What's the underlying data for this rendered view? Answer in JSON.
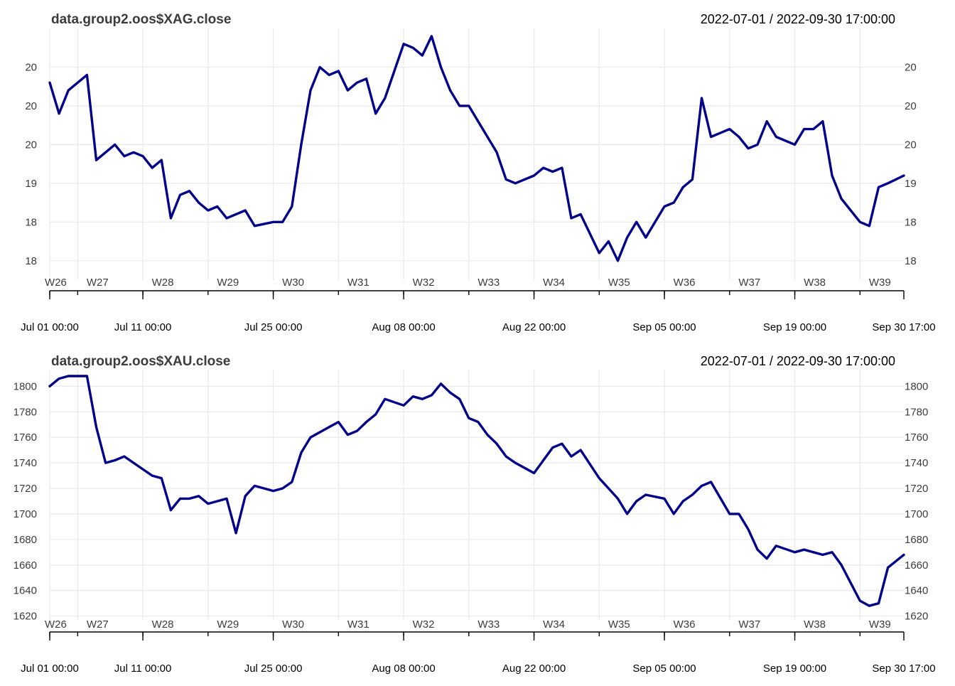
{
  "chart_data": [
    {
      "type": "line",
      "title": "data.group2.oos$XAG.close",
      "date_range": "2022-07-01 / 2022-09-30 17:00:00",
      "x_start": "2022-07-01 00:00",
      "x_end": "2022-09-30 17:00",
      "ylim": [
        17.75,
        21.0
      ],
      "y_ticks": [
        18.0,
        18.5,
        19.0,
        19.5,
        20.0,
        20.5
      ],
      "y_tick_labels": [
        "18",
        "18",
        "19",
        "20",
        "20",
        "20"
      ],
      "week_labels": [
        {
          "label": "W26",
          "date": "2022-07-01"
        },
        {
          "label": "W27",
          "date": "2022-07-04"
        },
        {
          "label": "W28",
          "date": "2022-07-11"
        },
        {
          "label": "W29",
          "date": "2022-07-18"
        },
        {
          "label": "W30",
          "date": "2022-07-25"
        },
        {
          "label": "W31",
          "date": "2022-08-01"
        },
        {
          "label": "W32",
          "date": "2022-08-08"
        },
        {
          "label": "W33",
          "date": "2022-08-15"
        },
        {
          "label": "W34",
          "date": "2022-08-22"
        },
        {
          "label": "W35",
          "date": "2022-08-29"
        },
        {
          "label": "W36",
          "date": "2022-09-05"
        },
        {
          "label": "W37",
          "date": "2022-09-12"
        },
        {
          "label": "W38",
          "date": "2022-09-19"
        },
        {
          "label": "W39",
          "date": "2022-09-26"
        }
      ],
      "date_labels": [
        {
          "label": "Jul 01 00:00",
          "date": "2022-07-01"
        },
        {
          "label": "Jul 11 00:00",
          "date": "2022-07-11"
        },
        {
          "label": "Jul 25 00:00",
          "date": "2022-07-25"
        },
        {
          "label": "Aug 08 00:00",
          "date": "2022-08-08"
        },
        {
          "label": "Aug 22 00:00",
          "date": "2022-08-22"
        },
        {
          "label": "Sep 05 00:00",
          "date": "2022-09-05"
        },
        {
          "label": "Sep 19 00:00",
          "date": "2022-09-19"
        },
        {
          "label": "Sep 30 17:00",
          "date": "2022-09-30 17:00"
        }
      ],
      "series": [
        {
          "color": "#00008b",
          "x": [
            "2022-07-01",
            "2022-07-02",
            "2022-07-03",
            "2022-07-05",
            "2022-07-06",
            "2022-07-07",
            "2022-07-08",
            "2022-07-09",
            "2022-07-10",
            "2022-07-11",
            "2022-07-12",
            "2022-07-13",
            "2022-07-14",
            "2022-07-15",
            "2022-07-16",
            "2022-07-17",
            "2022-07-18",
            "2022-07-19",
            "2022-07-20",
            "2022-07-21",
            "2022-07-22",
            "2022-07-23",
            "2022-07-25",
            "2022-07-26",
            "2022-07-27",
            "2022-07-28",
            "2022-07-29",
            "2022-07-30",
            "2022-07-31",
            "2022-08-01",
            "2022-08-02",
            "2022-08-03",
            "2022-08-04",
            "2022-08-05",
            "2022-08-06",
            "2022-08-08",
            "2022-08-09",
            "2022-08-10",
            "2022-08-11",
            "2022-08-12",
            "2022-08-13",
            "2022-08-14",
            "2022-08-15",
            "2022-08-16",
            "2022-08-17",
            "2022-08-18",
            "2022-08-19",
            "2022-08-20",
            "2022-08-22",
            "2022-08-23",
            "2022-08-24",
            "2022-08-25",
            "2022-08-26",
            "2022-08-27",
            "2022-08-29",
            "2022-08-30",
            "2022-08-31",
            "2022-09-01",
            "2022-09-02",
            "2022-09-03",
            "2022-09-05",
            "2022-09-06",
            "2022-09-07",
            "2022-09-08",
            "2022-09-09",
            "2022-09-10",
            "2022-09-12",
            "2022-09-13",
            "2022-09-14",
            "2022-09-15",
            "2022-09-16",
            "2022-09-17",
            "2022-09-19",
            "2022-09-20",
            "2022-09-21",
            "2022-09-22",
            "2022-09-23",
            "2022-09-24",
            "2022-09-26",
            "2022-09-27",
            "2022-09-28",
            "2022-09-29",
            "2022-09-30 17:00"
          ],
          "y": [
            20.3,
            19.9,
            20.2,
            20.4,
            19.3,
            19.4,
            19.5,
            19.35,
            19.4,
            19.35,
            19.2,
            19.3,
            18.55,
            18.85,
            18.9,
            18.75,
            18.65,
            18.7,
            18.55,
            18.6,
            18.65,
            18.45,
            18.5,
            18.5,
            18.7,
            19.5,
            20.2,
            20.5,
            20.4,
            20.45,
            20.2,
            20.3,
            20.35,
            19.9,
            20.1,
            20.8,
            20.75,
            20.65,
            20.9,
            20.5,
            20.2,
            20.0,
            20.0,
            19.8,
            19.6,
            19.4,
            19.05,
            19.0,
            19.1,
            19.2,
            19.15,
            19.2,
            18.55,
            18.6,
            18.1,
            18.25,
            18.0,
            18.3,
            18.5,
            18.3,
            18.7,
            18.75,
            18.95,
            19.05,
            20.1,
            19.6,
            19.7,
            19.6,
            19.45,
            19.5,
            19.8,
            19.6,
            19.5,
            19.7,
            19.7,
            19.8,
            19.1,
            18.8,
            18.5,
            18.45,
            18.95,
            19.0,
            19.1
          ]
        }
      ]
    },
    {
      "type": "line",
      "title": "data.group2.oos$XAU.close",
      "date_range": "2022-07-01 / 2022-09-30 17:00:00",
      "x_start": "2022-07-01 00:00",
      "x_end": "2022-09-30 17:00",
      "ylim": [
        1617,
        1813
      ],
      "y_ticks": [
        1620,
        1640,
        1660,
        1680,
        1700,
        1720,
        1740,
        1760,
        1780,
        1800
      ],
      "y_tick_labels": [
        "1620",
        "1640",
        "1660",
        "1680",
        "1700",
        "1720",
        "1740",
        "1760",
        "1780",
        "1800"
      ],
      "week_labels": [
        {
          "label": "W26",
          "date": "2022-07-01"
        },
        {
          "label": "W27",
          "date": "2022-07-04"
        },
        {
          "label": "W28",
          "date": "2022-07-11"
        },
        {
          "label": "W29",
          "date": "2022-07-18"
        },
        {
          "label": "W30",
          "date": "2022-07-25"
        },
        {
          "label": "W31",
          "date": "2022-08-01"
        },
        {
          "label": "W32",
          "date": "2022-08-08"
        },
        {
          "label": "W33",
          "date": "2022-08-15"
        },
        {
          "label": "W34",
          "date": "2022-08-22"
        },
        {
          "label": "W35",
          "date": "2022-08-29"
        },
        {
          "label": "W36",
          "date": "2022-09-05"
        },
        {
          "label": "W37",
          "date": "2022-09-12"
        },
        {
          "label": "W38",
          "date": "2022-09-19"
        },
        {
          "label": "W39",
          "date": "2022-09-26"
        }
      ],
      "date_labels": [
        {
          "label": "Jul 01 00:00",
          "date": "2022-07-01"
        },
        {
          "label": "Jul 11 00:00",
          "date": "2022-07-11"
        },
        {
          "label": "Jul 25 00:00",
          "date": "2022-07-25"
        },
        {
          "label": "Aug 08 00:00",
          "date": "2022-08-08"
        },
        {
          "label": "Aug 22 00:00",
          "date": "2022-08-22"
        },
        {
          "label": "Sep 05 00:00",
          "date": "2022-09-05"
        },
        {
          "label": "Sep 19 00:00",
          "date": "2022-09-19"
        },
        {
          "label": "Sep 30 17:00",
          "date": "2022-09-30 17:00"
        }
      ],
      "series": [
        {
          "color": "#00008b",
          "x": [
            "2022-07-01",
            "2022-07-02",
            "2022-07-03",
            "2022-07-05",
            "2022-07-06",
            "2022-07-07",
            "2022-07-08",
            "2022-07-09",
            "2022-07-10",
            "2022-07-11",
            "2022-07-12",
            "2022-07-13",
            "2022-07-14",
            "2022-07-15",
            "2022-07-16",
            "2022-07-17",
            "2022-07-18",
            "2022-07-19",
            "2022-07-20",
            "2022-07-21",
            "2022-07-22",
            "2022-07-23",
            "2022-07-25",
            "2022-07-26",
            "2022-07-27",
            "2022-07-28",
            "2022-07-29",
            "2022-07-30",
            "2022-07-31",
            "2022-08-01",
            "2022-08-02",
            "2022-08-03",
            "2022-08-04",
            "2022-08-05",
            "2022-08-06",
            "2022-08-08",
            "2022-08-09",
            "2022-08-10",
            "2022-08-11",
            "2022-08-12",
            "2022-08-13",
            "2022-08-14",
            "2022-08-15",
            "2022-08-16",
            "2022-08-17",
            "2022-08-18",
            "2022-08-19",
            "2022-08-20",
            "2022-08-22",
            "2022-08-23",
            "2022-08-24",
            "2022-08-25",
            "2022-08-26",
            "2022-08-27",
            "2022-08-29",
            "2022-08-30",
            "2022-08-31",
            "2022-09-01",
            "2022-09-02",
            "2022-09-03",
            "2022-09-05",
            "2022-09-06",
            "2022-09-07",
            "2022-09-08",
            "2022-09-09",
            "2022-09-10",
            "2022-09-12",
            "2022-09-13",
            "2022-09-14",
            "2022-09-15",
            "2022-09-16",
            "2022-09-17",
            "2022-09-19",
            "2022-09-20",
            "2022-09-21",
            "2022-09-22",
            "2022-09-23",
            "2022-09-24",
            "2022-09-26",
            "2022-09-27",
            "2022-09-28",
            "2022-09-29",
            "2022-09-30 17:00"
          ],
          "y": [
            1800,
            1806,
            1808,
            1808,
            1768,
            1740,
            1742,
            1745,
            1740,
            1735,
            1730,
            1728,
            1703,
            1712,
            1712,
            1714,
            1708,
            1710,
            1712,
            1685,
            1714,
            1722,
            1718,
            1720,
            1725,
            1748,
            1760,
            1764,
            1768,
            1772,
            1762,
            1765,
            1772,
            1778,
            1790,
            1785,
            1792,
            1790,
            1793,
            1802,
            1795,
            1790,
            1775,
            1772,
            1762,
            1755,
            1745,
            1740,
            1732,
            1742,
            1752,
            1755,
            1745,
            1750,
            1728,
            1720,
            1712,
            1700,
            1710,
            1715,
            1712,
            1700,
            1710,
            1715,
            1722,
            1725,
            1700,
            1700,
            1688,
            1672,
            1665,
            1675,
            1670,
            1672,
            1670,
            1668,
            1670,
            1660,
            1632,
            1628,
            1630,
            1658,
            1668
          ]
        }
      ]
    }
  ]
}
